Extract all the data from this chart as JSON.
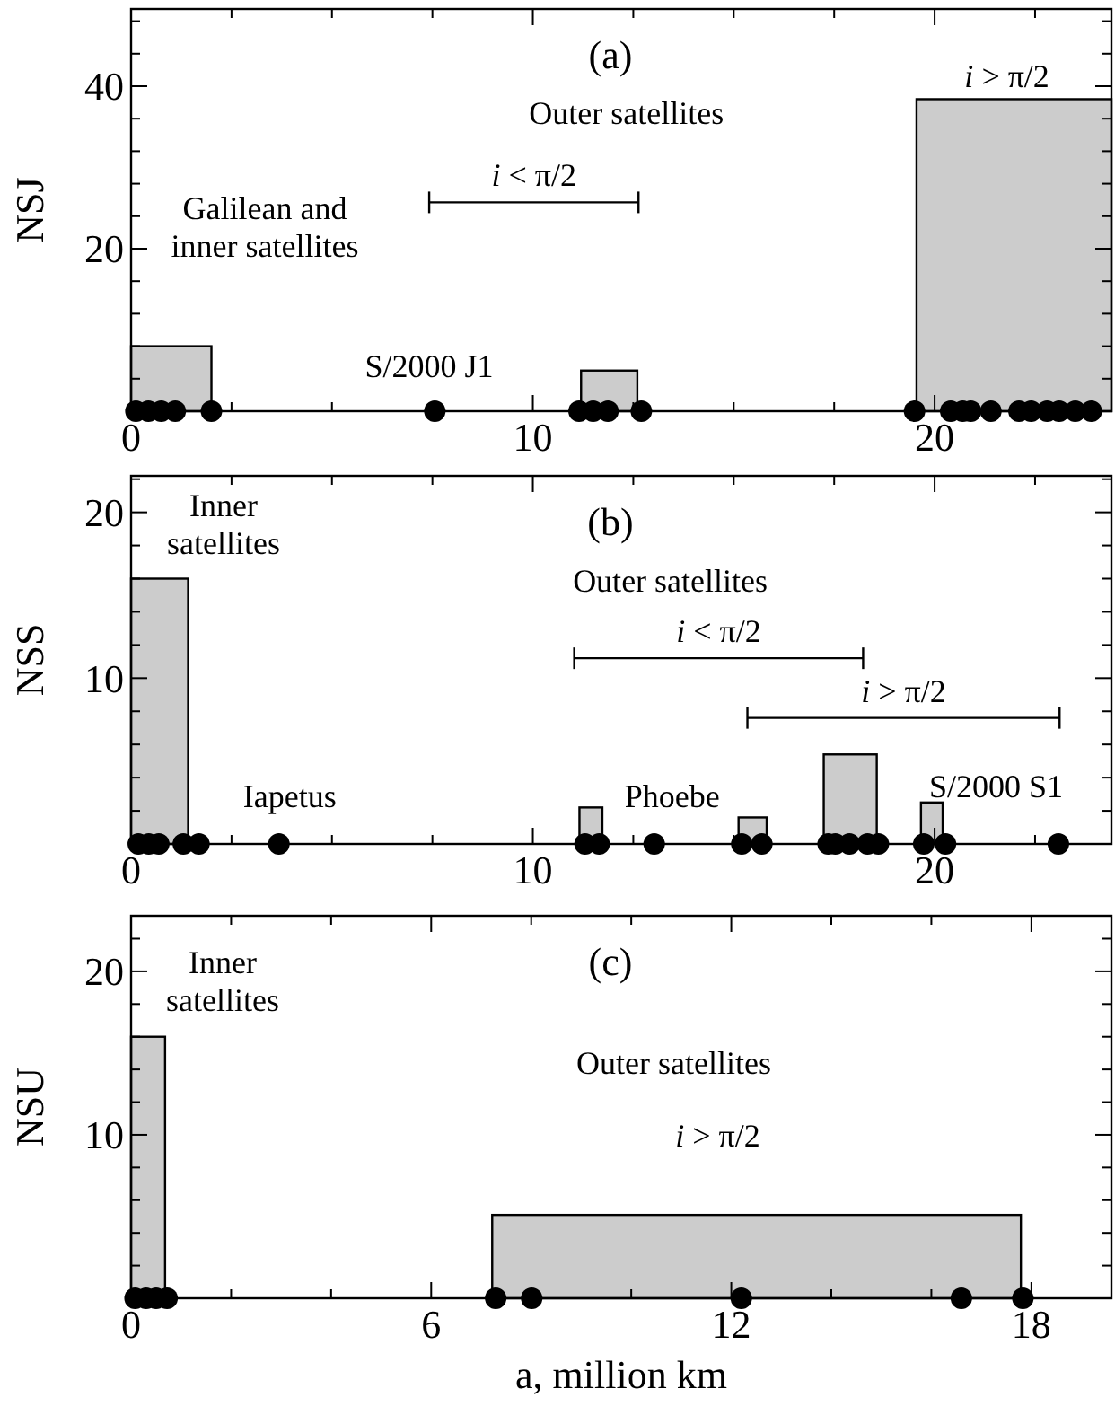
{
  "chart_data": [
    {
      "type": "histogram",
      "title": "(a)",
      "ylabel": "NSJ",
      "xlim": [
        0,
        24.4
      ],
      "ylim": [
        0,
        49.5
      ],
      "xticks": [
        0,
        {
          "value": 2.5,
          "label": null
        },
        {
          "value": 5,
          "label": null
        },
        {
          "value": 7.5,
          "label": null
        },
        10,
        {
          "value": 12.5,
          "label": null
        },
        {
          "value": 15,
          "label": null
        },
        {
          "value": 17.5,
          "label": null
        },
        20,
        {
          "value": 22.5,
          "label": null
        }
      ],
      "yticks": [
        {
          "value": 4,
          "label": null
        },
        {
          "value": 8,
          "label": null
        },
        {
          "value": 12,
          "label": null
        },
        {
          "value": 16,
          "label": null
        },
        20,
        {
          "value": 24,
          "label": null
        },
        {
          "value": 28,
          "label": null
        },
        {
          "value": 32,
          "label": null
        },
        {
          "value": 36,
          "label": null
        },
        40,
        {
          "value": 44,
          "label": null
        },
        {
          "value": 48,
          "label": null
        }
      ],
      "series": [
        {
          "color": "#cccccc",
          "bins": [
            0,
            2,
            11.2,
            12.6,
            19.55,
            24.4
          ],
          "values": [
            8,
            0,
            5,
            0,
            38.4
          ]
        },
        {
          "type": "scatter",
          "color": "#000000",
          "marker": "circle",
          "x": [
            0.12,
            0.43,
            0.75,
            1.1,
            2,
            7.56,
            11.15,
            11.5,
            11.87,
            12.7,
            19.5,
            20.4,
            20.7,
            20.9,
            21.4,
            22.1,
            22.4,
            22.8,
            23.1,
            23.5,
            23.9
          ],
          "values": [
            0,
            0,
            0,
            0,
            0,
            0,
            0,
            0,
            0,
            0,
            0,
            0,
            0,
            0,
            0,
            0,
            0,
            0,
            0,
            0,
            0
          ]
        }
      ],
      "annotations": [
        "Galilean and\ninner satellites",
        "S/2000 J1",
        "Outer satellites",
        "i < π/2",
        "i > π/2"
      ]
    },
    {
      "type": "histogram",
      "title": "(b)",
      "ylabel": "NSS",
      "xlim": [
        0,
        24.4
      ],
      "ylim": [
        0,
        22.2
      ],
      "xticks": [
        0,
        {
          "value": 2.5,
          "label": null
        },
        {
          "value": 5,
          "label": null
        },
        {
          "value": 7.5,
          "label": null
        },
        10,
        {
          "value": 12.5,
          "label": null
        },
        {
          "value": 15,
          "label": null
        },
        {
          "value": 17.5,
          "label": null
        },
        20,
        {
          "value": 22.5,
          "label": null
        }
      ],
      "yticks": [
        {
          "value": 2,
          "label": null
        },
        {
          "value": 4,
          "label": null
        },
        {
          "value": 6,
          "label": null
        },
        {
          "value": 8,
          "label": null
        },
        10,
        {
          "value": 12,
          "label": null
        },
        {
          "value": 14,
          "label": null
        },
        {
          "value": 16,
          "label": null
        },
        {
          "value": 18,
          "label": null
        },
        20,
        {
          "value": 22,
          "label": null
        }
      ],
      "series": [
        {
          "color": "#cccccc",
          "bins": [
            0,
            1.42,
            11.16,
            11.73,
            15.12,
            15.82,
            17.24,
            18.56,
            19.66,
            20.2
          ],
          "values": [
            16,
            0,
            2.2,
            0,
            1.6,
            0,
            5.4,
            0,
            2.5
          ]
        },
        {
          "type": "scatter",
          "color": "#000000",
          "marker": "circle",
          "x": [
            0.18,
            0.44,
            0.69,
            1.3,
            1.69,
            3.68,
            11.3,
            11.65,
            13.02,
            15.2,
            15.7,
            17.35,
            17.53,
            17.88,
            18.33,
            18.6,
            19.73,
            20.27,
            23.08
          ],
          "values": [
            0,
            0,
            0,
            0,
            0,
            0,
            0,
            0,
            0,
            0,
            0,
            0,
            0,
            0,
            0,
            0,
            0,
            0,
            0
          ]
        }
      ],
      "annotations": [
        "Inner\nsatellites",
        "Outer satellites",
        "i < π/2",
        "i > π/2",
        "Iapetus",
        "Phoebe",
        "S/2000 S1"
      ]
    },
    {
      "type": "histogram",
      "title": "(c)",
      "ylabel": "NSU",
      "xlabel": "a, million km",
      "xlim": [
        0,
        19.6
      ],
      "ylim": [
        0,
        23.4
      ],
      "xticks": [
        0,
        {
          "value": 2,
          "label": null
        },
        {
          "value": 4,
          "label": null
        },
        6,
        {
          "value": 8,
          "label": null
        },
        {
          "value": 10,
          "label": null
        },
        12,
        {
          "value": 14,
          "label": null
        },
        {
          "value": 16,
          "label": null
        },
        18
      ],
      "yticks": [
        {
          "value": 2,
          "label": null
        },
        {
          "value": 4,
          "label": null
        },
        {
          "value": 6,
          "label": null
        },
        {
          "value": 8,
          "label": null
        },
        10,
        {
          "value": 12,
          "label": null
        },
        {
          "value": 14,
          "label": null
        },
        {
          "value": 16,
          "label": null
        },
        {
          "value": 18,
          "label": null
        },
        20,
        {
          "value": 22,
          "label": null
        }
      ],
      "series": [
        {
          "color": "#cccccc",
          "bins": [
            0,
            0.68,
            7.22,
            17.79
          ],
          "values": [
            16,
            0,
            5.1
          ]
        },
        {
          "type": "scatter",
          "color": "#000000",
          "marker": "circle",
          "x": [
            0.08,
            0.3,
            0.5,
            0.72,
            7.29,
            8.01,
            12.2,
            16.6,
            17.83
          ],
          "values": [
            0,
            0,
            0,
            0,
            0,
            0,
            0,
            0,
            0
          ]
        }
      ],
      "annotations": [
        "Inner\nsatellites",
        "Outer satellites",
        "i > π/2"
      ]
    }
  ]
}
